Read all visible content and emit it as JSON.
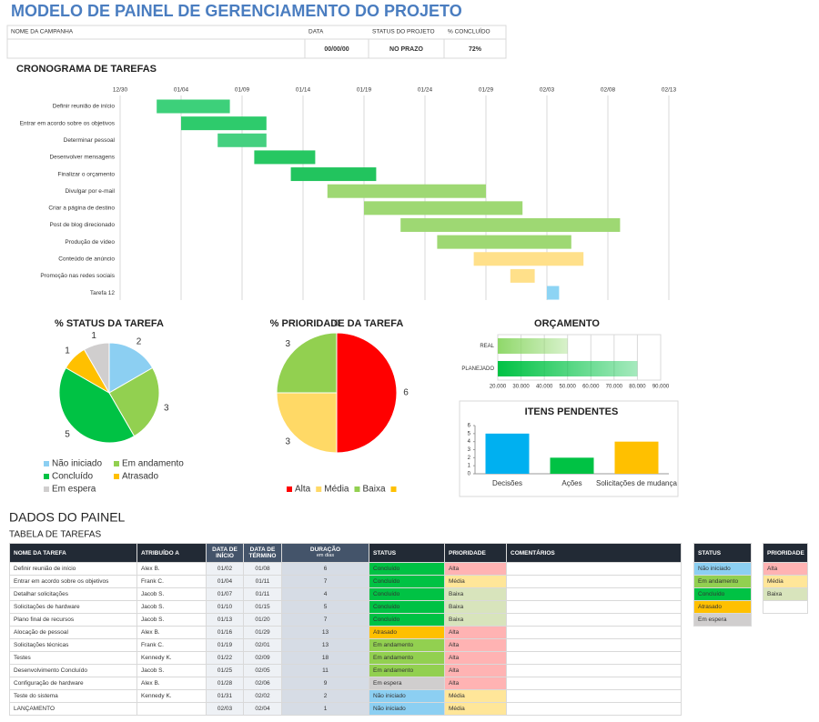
{
  "header": {
    "title": "MODELO DE PAINEL DE GERENCIAMENTO DO PROJETO"
  },
  "summary": {
    "labels": [
      "NOME DA CAMPANHA",
      "DATA",
      "STATUS DO PROJETO",
      "% CONCLUÍDO"
    ],
    "values": [
      null,
      "00/00/00",
      "NO PRAZO",
      "72%"
    ]
  },
  "chart_data": [
    {
      "type": "gantt",
      "title": "CRONOGRAMA DE TAREFAS",
      "categories": [
        "Definir reunião de início",
        "Entrar em acordo sobre os objetivos",
        "Determinar pessoal",
        "Desenvolver mensagens",
        "Finalizar o orçamento",
        "Divulgar por e-mail",
        "Criar a página de destino",
        "Post de blog direcionado",
        "Produção de vídeo",
        "Conteúdo de anúncio",
        "Promoção nas redes sociais",
        "Tarefa 12"
      ],
      "start": [
        "01/02",
        "01/04",
        "01/07",
        "01/10",
        "01/13",
        "01/16",
        "01/19",
        "01/22",
        "01/25",
        "01/28",
        "01/31",
        "02/03"
      ],
      "end": [
        "01/08",
        "01/11",
        "01/11",
        "01/15",
        "01/20",
        "01/29",
        "02/01",
        "02/09",
        "02/05",
        "02/06",
        "02/02",
        "02/04"
      ],
      "colors": [
        "#3dd07a",
        "#2ecb6c",
        "#45d080",
        "#27c762",
        "#22c45e",
        "#9ed873",
        "#9ed873",
        "#9ed873",
        "#9ed873",
        "#ffe08a",
        "#ffe08a",
        "#8dd4f4"
      ],
      "xlim": [
        "12/30",
        "02/13"
      ],
      "xticks": [
        "12/30",
        "01/04",
        "01/09",
        "01/14",
        "01/19",
        "01/24",
        "01/29",
        "02/03",
        "02/08",
        "02/13"
      ],
      "grid": true
    },
    {
      "type": "pie",
      "title": "% STATUS DA TAREFA",
      "categories": [
        "Não iniciado",
        "Em andamento",
        "Concluído",
        "Atrasado",
        "Em espera"
      ],
      "values": [
        2,
        3,
        5,
        1,
        1
      ],
      "colors": [
        "#8ccff2",
        "#92d050",
        "#00c244",
        "#ffc000",
        "#d0cece"
      ]
    },
    {
      "type": "pie",
      "title": "% PRIORIDADE DA TAREFA",
      "categories": [
        "Alta",
        "Média",
        "Baixa",
        null
      ],
      "values": [
        6,
        3,
        3,
        0
      ],
      "colors": [
        "#ff0000",
        "#ffd966",
        "#92d050",
        "#ffc000"
      ]
    },
    {
      "type": "bar",
      "orientation": "horizontal",
      "title": "ORÇAMENTO",
      "categories": [
        "REAL",
        "PLANEJADO"
      ],
      "values": [
        50000,
        80000
      ],
      "colors": [
        "#8fd86a",
        "#00c244"
      ],
      "xlim": [
        20000,
        90000
      ],
      "xticks": [
        {
          "value": 20000,
          "label": "20.000"
        },
        {
          "value": 30000,
          "label": "30.000"
        },
        {
          "value": 40000,
          "label": "40.000"
        },
        {
          "value": 50000,
          "label": "50.000"
        },
        {
          "value": 60000,
          "label": "60.000"
        },
        {
          "value": 70000,
          "label": "70.000"
        },
        {
          "value": 80000,
          "label": "80.000"
        },
        {
          "value": 90000,
          "label": "90.000"
        }
      ],
      "grid": true
    },
    {
      "type": "bar",
      "title": "ITENS PENDENTES",
      "categories": [
        "Decisões",
        "Ações",
        "Solicitações de mudança"
      ],
      "values": [
        5,
        2,
        4
      ],
      "colors": [
        "#00b0f0",
        "#00c244",
        "#ffc000"
      ],
      "ylim": [
        0,
        6
      ],
      "yticks": [
        0,
        1,
        2,
        3,
        4,
        5,
        6
      ]
    }
  ],
  "panel": {
    "title": "DADOS DO PAINEL",
    "subtitle": "TABELA DE TAREFAS"
  },
  "table": {
    "columns": [
      "NOME DA TAREFA",
      "ATRIBUÍDO A",
      "DATA DE INÍCIO",
      "DATA DE TÉRMINO",
      "DURAÇÃO",
      "STATUS",
      "PRIORIDADE",
      "COMENTÁRIOS"
    ],
    "duration_unit": "em dias",
    "rows": [
      [
        "Definir reunião de início",
        "Alex B.",
        "01/02",
        "01/08",
        6,
        "Concluído",
        "Alta"
      ],
      [
        "Entrar em acordo sobre os objetivos",
        "Frank C.",
        "01/04",
        "01/11",
        7,
        "Concluído",
        "Média"
      ],
      [
        "Detalhar solicitações",
        "Jacob S.",
        "01/07",
        "01/11",
        4,
        "Concluído",
        "Baixa"
      ],
      [
        "Solicitações de hardware",
        "Jacob S.",
        "01/10",
        "01/15",
        5,
        "Concluído",
        "Baixa"
      ],
      [
        "Plano final de recursos",
        "Jacob S.",
        "01/13",
        "01/20",
        7,
        "Concluído",
        "Baixa"
      ],
      [
        "Alocação de pessoal",
        "Alex B.",
        "01/16",
        "01/29",
        13,
        "Atrasado",
        "Alta"
      ],
      [
        "Solicitações técnicas",
        "Frank C.",
        "01/19",
        "02/01",
        13,
        "Em andamento",
        "Alta"
      ],
      [
        "Testes",
        "Kennedy K.",
        "01/22",
        "02/09",
        18,
        "Em andamento",
        "Alta"
      ],
      [
        "Desenvolvimento Concluído",
        "Jacob S.",
        "01/25",
        "02/05",
        11,
        "Em andamento",
        "Alta"
      ],
      [
        "Configuração de hardware",
        "Alex B.",
        "01/28",
        "02/06",
        9,
        "Em espera",
        "Alta"
      ],
      [
        "Teste do sistema",
        "Kennedy K.",
        "01/31",
        "02/02",
        2,
        "Não iniciado",
        "Média"
      ],
      [
        "LANÇAMENTO",
        null,
        "02/03",
        "02/04",
        1,
        "Não iniciado",
        "Média"
      ]
    ]
  },
  "status_key": {
    "title": "STATUS",
    "items": [
      "Não iniciado",
      "Em andamento",
      "Concluído",
      "Atrasado",
      "Em espera"
    ],
    "colors": [
      "#8ccff2",
      "#92d050",
      "#00c244",
      "#ffc000",
      "#d0cece"
    ]
  },
  "priority_key": {
    "title": "PRIORIDADE",
    "items": [
      "Alta",
      "Média",
      "Baixa"
    ],
    "colors": [
      "#ffb3b3",
      "#ffe699",
      "#d8e4bc"
    ]
  }
}
